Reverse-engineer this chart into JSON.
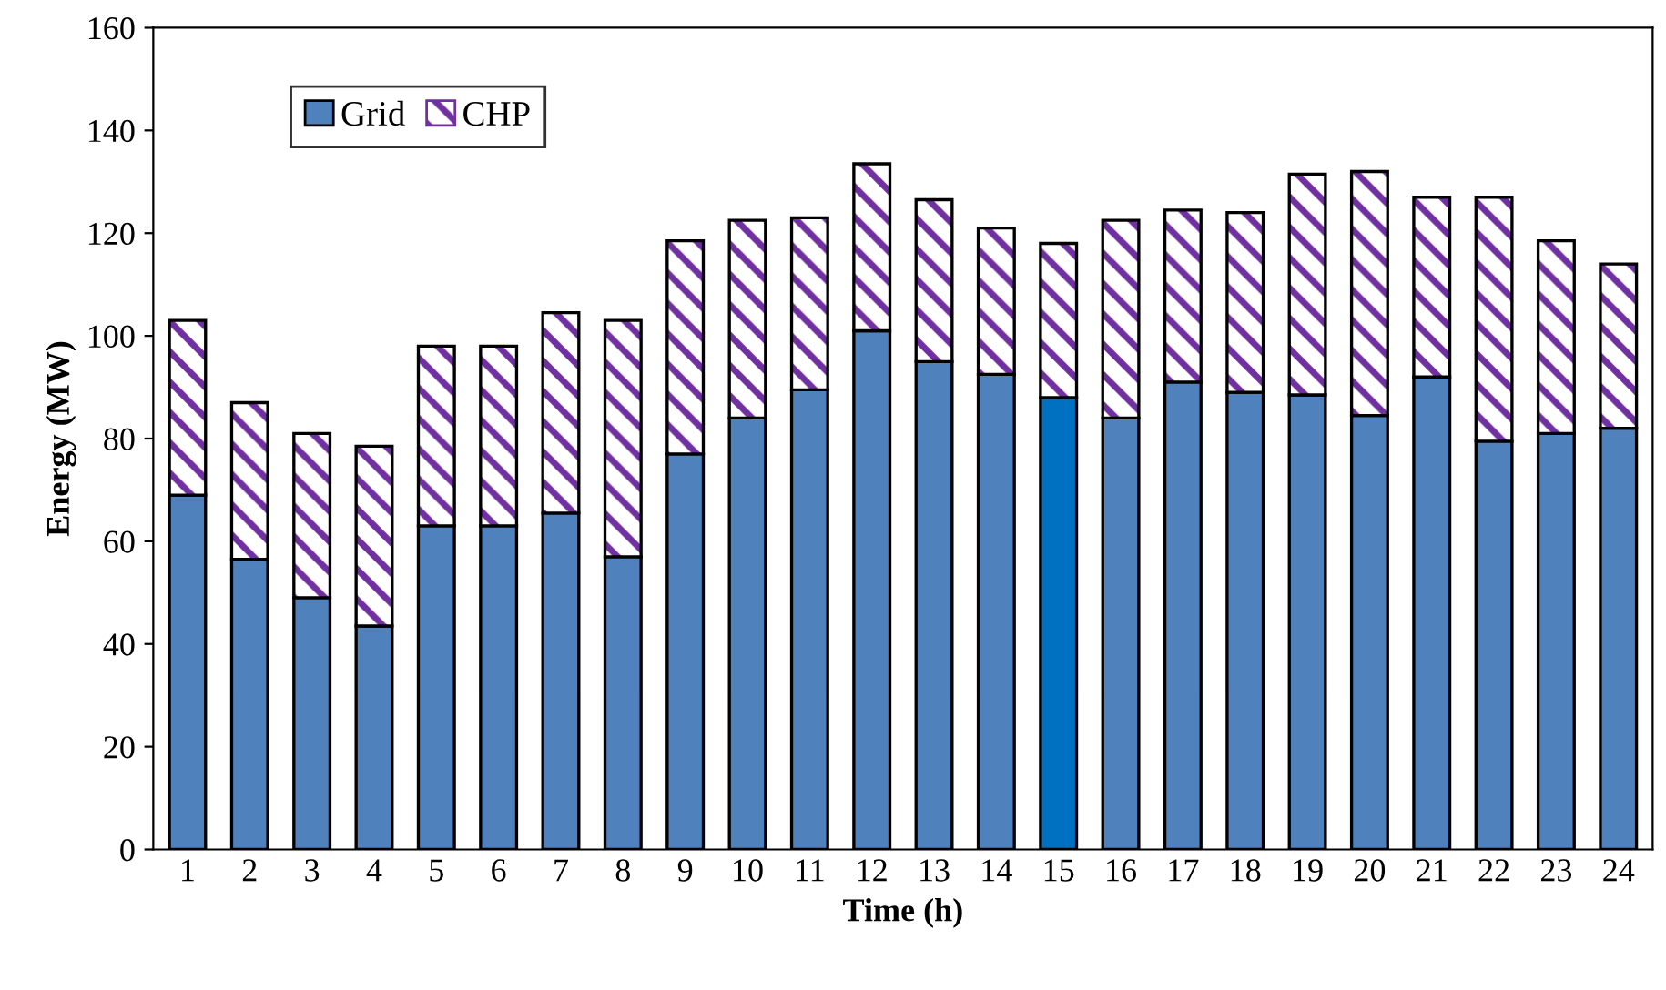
{
  "chart_data": {
    "type": "bar",
    "stacked": true,
    "xlabel": "Time (h)",
    "ylabel": "Energy (MW)",
    "categories": [
      "1",
      "2",
      "3",
      "4",
      "5",
      "6",
      "7",
      "8",
      "9",
      "10",
      "11",
      "12",
      "13",
      "14",
      "15",
      "16",
      "17",
      "18",
      "19",
      "20",
      "21",
      "22",
      "23",
      "24"
    ],
    "series": [
      {
        "name": "Grid",
        "color": "#4f81bd",
        "colors": [
          "#4f81bd",
          "#4f81bd",
          "#4f81bd",
          "#4f81bd",
          "#4f81bd",
          "#4f81bd",
          "#4f81bd",
          "#4f81bd",
          "#4f81bd",
          "#4f81bd",
          "#4f81bd",
          "#4f81bd",
          "#4f81bd",
          "#4f81bd",
          "#0070c0",
          "#4f81bd",
          "#4f81bd",
          "#4f81bd",
          "#4f81bd",
          "#4f81bd",
          "#4f81bd",
          "#4f81bd",
          "#4f81bd",
          "#4f81bd"
        ],
        "values": [
          69,
          56.5,
          49,
          43.5,
          63,
          63,
          65.5,
          57,
          77,
          84,
          89.5,
          101,
          95,
          92.5,
          88,
          84,
          91,
          89,
          88.5,
          84.5,
          92,
          79.5,
          81,
          82
        ]
      },
      {
        "name": "CHP",
        "color": "#7030a0",
        "values": [
          34,
          30.5,
          32,
          35,
          35,
          35,
          39,
          46,
          41.5,
          38.5,
          33.5,
          32.5,
          31.5,
          28.5,
          30,
          38.5,
          33.5,
          35,
          43,
          47.5,
          35,
          47.5,
          37.5,
          32
        ]
      }
    ],
    "ylim": [
      0,
      160
    ],
    "yticks": [
      0,
      20,
      40,
      60,
      80,
      100,
      120,
      140,
      160
    ],
    "grid": false,
    "legend": "top left"
  }
}
